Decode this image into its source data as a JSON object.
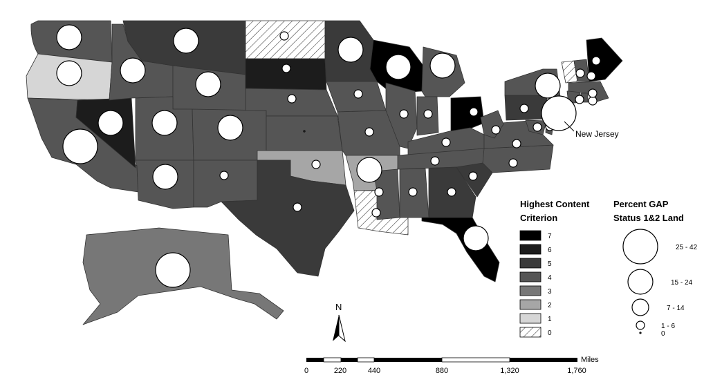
{
  "classes": [
    {
      "label": "7",
      "color": "#000000"
    },
    {
      "label": "6",
      "color": "#1c1c1c"
    },
    {
      "label": "5",
      "color": "#3a3a3a"
    },
    {
      "label": "4",
      "color": "#555555"
    },
    {
      "label": "3",
      "color": "#777777"
    },
    {
      "label": "2",
      "color": "#a6a6a6"
    },
    {
      "label": "1",
      "color": "#d6d6d6"
    },
    {
      "label": "0",
      "color": "hatch"
    }
  ],
  "legend_class": {
    "title_line1": "Highest Content",
    "title_line2": "Criterion"
  },
  "legend_gap": {
    "title_line1": "Percent GAP",
    "title_line2": "Status 1&2 Land",
    "sizes": [
      {
        "label": "25 - 42",
        "size_class": 4
      },
      {
        "label": "15 - 24",
        "size_class": 3
      },
      {
        "label": "7 - 14",
        "size_class": 2
      },
      {
        "label": "1 - 6",
        "size_class": 1
      },
      {
        "label": "0",
        "size_class": 0
      }
    ]
  },
  "callout": {
    "label": "New Jersey"
  },
  "north_arrow": {
    "label": "N"
  },
  "scale_bar": {
    "unit": "Miles",
    "ticks": [
      "0",
      "220",
      "440",
      "880",
      "1,320",
      "1,760"
    ]
  },
  "states": [
    {
      "name": "Washington",
      "class": "4",
      "gap_class": 3
    },
    {
      "name": "Oregon",
      "class": "1",
      "gap_class": 3
    },
    {
      "name": "California",
      "class": "4",
      "gap_class": 4
    },
    {
      "name": "Nevada",
      "class": "6",
      "gap_class": 3
    },
    {
      "name": "Idaho",
      "class": "4",
      "gap_class": 3
    },
    {
      "name": "Montana",
      "class": "5",
      "gap_class": 3
    },
    {
      "name": "Wyoming",
      "class": "4",
      "gap_class": 3
    },
    {
      "name": "Utah",
      "class": "4",
      "gap_class": 3
    },
    {
      "name": "Arizona",
      "class": "4",
      "gap_class": 3
    },
    {
      "name": "Colorado",
      "class": "4",
      "gap_class": 3
    },
    {
      "name": "New Mexico",
      "class": "4",
      "gap_class": 1
    },
    {
      "name": "North Dakota",
      "class": "0",
      "gap_class": 1
    },
    {
      "name": "South Dakota",
      "class": "6",
      "gap_class": 1
    },
    {
      "name": "Nebraska",
      "class": "4",
      "gap_class": 1
    },
    {
      "name": "Kansas",
      "class": "4",
      "gap_class": 0
    },
    {
      "name": "Oklahoma",
      "class": "2",
      "gap_class": 1
    },
    {
      "name": "Texas",
      "class": "5",
      "gap_class": 1
    },
    {
      "name": "Minnesota",
      "class": "5",
      "gap_class": 3
    },
    {
      "name": "Iowa",
      "class": "4",
      "gap_class": 1
    },
    {
      "name": "Missouri",
      "class": "4",
      "gap_class": 1
    },
    {
      "name": "Arkansas",
      "class": "2",
      "gap_class": 3
    },
    {
      "name": "Louisiana",
      "class": "0",
      "gap_class": 1
    },
    {
      "name": "Wisconsin",
      "class": "7",
      "gap_class": 3
    },
    {
      "name": "Illinois",
      "class": "4",
      "gap_class": 1
    },
    {
      "name": "Michigan",
      "class": "4",
      "gap_class": 3
    },
    {
      "name": "Indiana",
      "class": "4",
      "gap_class": 1
    },
    {
      "name": "Ohio",
      "class": "7",
      "gap_class": 1
    },
    {
      "name": "Kentucky",
      "class": "4",
      "gap_class": 1
    },
    {
      "name": "Tennessee",
      "class": "4",
      "gap_class": 1
    },
    {
      "name": "Mississippi",
      "class": "4",
      "gap_class": 1
    },
    {
      "name": "Alabama",
      "class": "4",
      "gap_class": 1
    },
    {
      "name": "Georgia",
      "class": "5",
      "gap_class": 1
    },
    {
      "name": "Florida",
      "class": "7",
      "gap_class": 3
    },
    {
      "name": "South Carolina",
      "class": "5",
      "gap_class": 1
    },
    {
      "name": "North Carolina",
      "class": "4",
      "gap_class": 1
    },
    {
      "name": "Virginia",
      "class": "4",
      "gap_class": 1
    },
    {
      "name": "West Virginia",
      "class": "4",
      "gap_class": 1
    },
    {
      "name": "Pennsylvania",
      "class": "5",
      "gap_class": 1
    },
    {
      "name": "Maryland",
      "class": "4",
      "gap_class": 1
    },
    {
      "name": "Delaware",
      "class": "4",
      "gap_class": 1
    },
    {
      "name": "New Jersey",
      "class": "4",
      "gap_class": 4
    },
    {
      "name": "New York",
      "class": "4",
      "gap_class": 3
    },
    {
      "name": "Connecticut",
      "class": "4",
      "gap_class": 1
    },
    {
      "name": "Rhode Island",
      "class": "4",
      "gap_class": 1
    },
    {
      "name": "Massachusetts",
      "class": "4",
      "gap_class": 1
    },
    {
      "name": "Vermont",
      "class": "0",
      "gap_class": 1
    },
    {
      "name": "New Hampshire",
      "class": "4",
      "gap_class": 1
    },
    {
      "name": "Maine",
      "class": "7",
      "gap_class": 1
    },
    {
      "name": "Alaska",
      "class": "3",
      "gap_class": 4
    }
  ]
}
